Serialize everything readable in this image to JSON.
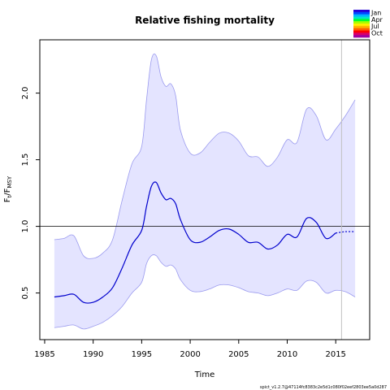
{
  "chart_data": {
    "type": "line",
    "title": "Relative fishing mortality",
    "xlabel": "Time",
    "ylabel_main": "F",
    "ylabel_sub_t": "t",
    "ylabel_sep": "/F",
    "ylabel_sub_msy": "MSY",
    "xlim": [
      1984.5,
      2018.5
    ],
    "ylim": [
      0.15,
      2.4
    ],
    "x_ticks": [
      1985,
      1990,
      1995,
      2000,
      2005,
      2010,
      2015
    ],
    "y_ticks": [
      0.5,
      1.0,
      1.5,
      2.0
    ],
    "reference_line": 1.0,
    "vertical_marker": 2015.6,
    "estimate_end": 2015.6,
    "colors": {
      "estimate": "#0000cd",
      "band_fill": "#e4e4ff",
      "band_edge": "#9a9aee",
      "reference": "#000000",
      "marker": "#c0c0c0"
    },
    "series": [
      {
        "x": [
          1986,
          1987,
          1988,
          1989,
          1990,
          1991,
          1992,
          1993,
          1994,
          1995,
          1995.5,
          1996,
          1996.5,
          1997,
          1997.5,
          1998,
          1998.5,
          1999,
          2000,
          2001,
          2002,
          2003,
          2004,
          2005,
          2006,
          2007,
          2008,
          2009,
          2010,
          2011,
          2012,
          2013,
          2014,
          2015,
          2016,
          2017
        ],
        "values": [
          0.47,
          0.48,
          0.49,
          0.43,
          0.43,
          0.47,
          0.54,
          0.69,
          0.86,
          0.97,
          1.15,
          1.3,
          1.33,
          1.25,
          1.2,
          1.21,
          1.17,
          1.05,
          0.9,
          0.88,
          0.92,
          0.97,
          0.98,
          0.94,
          0.88,
          0.88,
          0.83,
          0.86,
          0.94,
          0.92,
          1.06,
          1.03,
          0.91,
          0.95,
          0.96,
          0.96
        ]
      },
      {
        "x": [
          1986,
          1987,
          1988,
          1989,
          1990,
          1991,
          1992,
          1993,
          1994,
          1995,
          1995.5,
          1996,
          1996.5,
          1997,
          1997.5,
          1998,
          1998.5,
          1999,
          2000,
          2001,
          2002,
          2003,
          2004,
          2005,
          2006,
          2007,
          2008,
          2009,
          2010,
          2011,
          2012,
          2013,
          2014,
          2015,
          2016,
          2017
        ],
        "values": [
          0.9,
          0.91,
          0.93,
          0.78,
          0.76,
          0.8,
          0.9,
          1.2,
          1.47,
          1.6,
          1.95,
          2.25,
          2.28,
          2.12,
          2.05,
          2.07,
          1.98,
          1.72,
          1.55,
          1.55,
          1.63,
          1.7,
          1.7,
          1.64,
          1.53,
          1.52,
          1.45,
          1.52,
          1.65,
          1.63,
          1.88,
          1.83,
          1.65,
          1.73,
          1.83,
          1.95
        ]
      },
      {
        "x": [
          1986,
          1987,
          1988,
          1989,
          1990,
          1991,
          1992,
          1993,
          1994,
          1995,
          1995.5,
          1996,
          1996.5,
          1997,
          1997.5,
          1998,
          1998.5,
          1999,
          2000,
          2001,
          2002,
          2003,
          2004,
          2005,
          2006,
          2007,
          2008,
          2009,
          2010,
          2011,
          2012,
          2013,
          2014,
          2015,
          2016,
          2017
        ],
        "values": [
          0.24,
          0.25,
          0.26,
          0.23,
          0.25,
          0.28,
          0.33,
          0.4,
          0.5,
          0.58,
          0.72,
          0.78,
          0.78,
          0.73,
          0.7,
          0.71,
          0.68,
          0.6,
          0.52,
          0.51,
          0.53,
          0.56,
          0.56,
          0.54,
          0.51,
          0.5,
          0.48,
          0.5,
          0.53,
          0.52,
          0.59,
          0.58,
          0.5,
          0.52,
          0.51,
          0.47
        ]
      }
    ],
    "legend": {
      "position": "top-right",
      "labels": [
        "Jan",
        "Apr",
        "Jul",
        "Oct"
      ],
      "colors": [
        "#2400d8",
        "#0048ff",
        "#00b4ff",
        "#00e8c8",
        "#00ff30",
        "#a8ff00",
        "#fff000",
        "#ffb400",
        "#ff6000",
        "#ff0000",
        "#d8006c",
        "#a000a0"
      ]
    },
    "footer": "spict_v1.2.7@47114fc8383c2e5d1c080f02eef2803ee5a0d287"
  }
}
